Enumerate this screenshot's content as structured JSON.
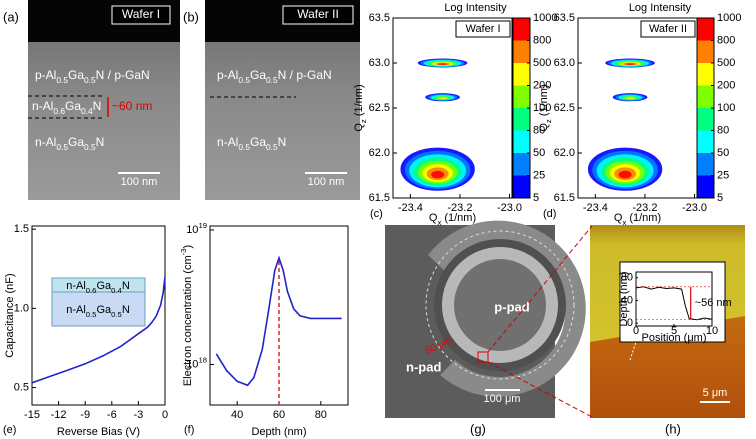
{
  "chart_data": [
    {
      "type": "heatmap",
      "panel": "(c)",
      "title": "Log Intensity",
      "annotation": "Wafer I",
      "xlabel": [
        "Q",
        "x",
        " (1/nm)"
      ],
      "ylabel": [
        "Q",
        "z",
        " (1/nm)"
      ],
      "xlim": [
        -23.47,
        -22.99
      ],
      "xticks": [
        {
          "value": -23.4,
          "label": "-23.4"
        },
        {
          "value": -23.2,
          "label": "-23.2"
        },
        {
          "value": -23,
          "label": "-23.0"
        }
      ],
      "ylim": [
        61.5,
        63.5
      ],
      "yticks": [
        61.5,
        {
          "value": 62,
          "label": "62.0"
        },
        62.5,
        {
          "value": 63,
          "label": "63.0"
        },
        63.5
      ],
      "colorbar_ticks": [
        5,
        25,
        50,
        80,
        100,
        200,
        500,
        800,
        1000
      ],
      "colors": [
        "#0000ff",
        "#0080ff",
        "#00ffff",
        "#00ff80",
        "#80ff00",
        "#ffff00",
        "#ff8000",
        "#ff0000"
      ]
    },
    {
      "type": "heatmap",
      "panel": "(d)",
      "title": "Log Intensity",
      "annotation": "Wafer II",
      "xlabel": [
        "Q",
        "x",
        " (1/nm)"
      ],
      "ylabel": [
        "Q",
        "z",
        " (1/nm)"
      ],
      "xlim": [
        -23.47,
        -22.99
      ],
      "xticks": [
        {
          "value": -23.4,
          "label": "-23.4"
        },
        {
          "value": -23.2,
          "label": "-23.2"
        },
        {
          "value": -23,
          "label": "-23.0"
        }
      ],
      "ylim": [
        61.5,
        63.5
      ],
      "yticks": [
        61.5,
        {
          "value": 62,
          "label": "62.0"
        },
        62.5,
        {
          "value": 63,
          "label": "63.0"
        },
        63.5
      ],
      "colorbar_ticks": [
        5,
        25,
        50,
        80,
        100,
        200,
        500,
        800,
        1000
      ],
      "colors": [
        "#0000ff",
        "#0080ff",
        "#00ffff",
        "#00ff80",
        "#80ff00",
        "#ffff00",
        "#ff8000",
        "#ff0000"
      ]
    },
    {
      "type": "line",
      "panel": "(e)",
      "xlabel": "Reverse Bias (V)",
      "ylabel": "Capacitance (nF)",
      "x": [
        -15,
        -13,
        -11,
        -9,
        -7,
        -5,
        -4,
        -3,
        -2,
        -1.5,
        -1,
        -0.5,
        -0.2,
        0
      ],
      "series": [
        {
          "color": "#2323c8",
          "values": [
            0.53,
            0.57,
            0.61,
            0.65,
            0.7,
            0.76,
            0.8,
            0.84,
            0.88,
            0.91,
            0.95,
            1.02,
            1.1,
            1.2
          ]
        }
      ],
      "xlim": [
        -15,
        0
      ],
      "xticks": [
        -15,
        -12,
        -9,
        -6,
        -3,
        0
      ],
      "ylim": [
        0.39,
        1.52
      ],
      "yticks": [
        0.5,
        {
          "value": 1,
          "label": "1.0"
        },
        1.5
      ],
      "inset_layers": [
        [
          "n-Al",
          "0.6",
          "Ga",
          "0.4",
          "N"
        ],
        [
          "n-Al",
          "0.5",
          "Ga",
          "0.5",
          "N"
        ]
      ]
    },
    {
      "type": "line",
      "panel": "(f)",
      "xlabel": "Depth (nm)",
      "ylabel": [
        "Electron concentration (cm",
        "-3",
        ")"
      ],
      "log_y": true,
      "x": [
        30,
        35,
        40,
        45,
        48,
        52,
        55,
        58,
        60,
        62,
        64,
        67,
        70,
        75,
        80,
        85,
        90
      ],
      "series": [
        {
          "color": "#2323c8",
          "values": [
            1.2e+18,
            9e+17,
            7.5e+17,
            7e+17,
            8e+17,
            1.3e+18,
            2.5e+18,
            5e+18,
            6.2e+18,
            5e+18,
            3.5e+18,
            2.6e+18,
            2.3e+18,
            2.2e+18,
            2.2e+18,
            2.2e+18,
            2.2e+18
          ]
        }
      ],
      "xlim": [
        27,
        93
      ],
      "xticks": [
        40,
        60,
        80
      ],
      "ylim": [
        5e+17,
        1.07e+19
      ],
      "yticks": [
        {
          "value": 1e+18,
          "label": [
            "10",
            "18"
          ]
        },
        {
          "value": 1e+19,
          "label": [
            "10",
            "19"
          ]
        }
      ],
      "vline": {
        "x": 60,
        "color": "#d62728"
      }
    },
    {
      "type": "line",
      "xlabel": "Position (μm)",
      "ylabel": "Depth (nm)",
      "annotation": "~56 nm",
      "x": [
        0,
        1,
        2,
        3,
        4,
        5,
        6,
        6.5,
        7,
        8,
        9,
        10
      ],
      "series": [
        {
          "color": "#000000",
          "values": [
            62,
            64,
            60,
            63,
            61,
            62,
            60,
            30,
            8,
            6,
            9,
            7
          ]
        }
      ],
      "xlim": [
        0,
        10
      ],
      "xticks": [
        0,
        5,
        10
      ],
      "ylim": [
        -5,
        90
      ],
      "yticks": [
        0,
        40,
        80
      ]
    }
  ],
  "images": {
    "a": {
      "panel": "(a)",
      "tag": "Wafer I",
      "layers": [
        [
          "p-Al",
          "0.5",
          "Ga",
          "0.5",
          "N / p-GaN"
        ],
        [
          "n-Al",
          "0.6",
          "Ga",
          "0.4",
          "N"
        ],
        [
          "n-Al",
          "0.5",
          "Ga",
          "0.5",
          "N"
        ]
      ],
      "thickness": "~60 nm",
      "scale_bar": "100 nm"
    },
    "b": {
      "panel": "(b)",
      "tag": "Wafer II",
      "layers": [
        [
          "p-Al",
          "0.5",
          "Ga",
          "0.5",
          "N / p-GaN"
        ],
        [
          "n-Al",
          "0.5",
          "Ga",
          "0.5",
          "N"
        ]
      ],
      "scale_bar": "100 nm"
    },
    "g": {
      "panel": "(g)",
      "labels": [
        "p-pad",
        "n-pad"
      ],
      "spacing": "50 μm",
      "scale_bar": "100 μm"
    },
    "h": {
      "panel": "(h)",
      "scale_bar": "5 μm"
    }
  }
}
